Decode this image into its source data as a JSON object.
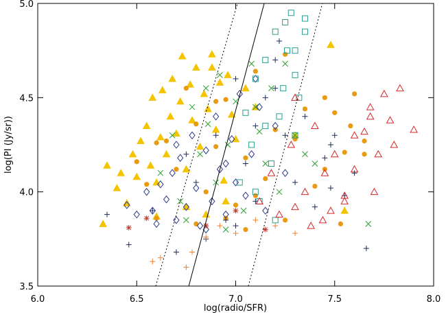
{
  "chart_data": {
    "type": "scatter",
    "xlabel": "log(radio/SFR)",
    "ylabel": "log(PI  (Jy/sr))",
    "xlim": [
      6.0,
      8.0
    ],
    "ylim": [
      3.5,
      5.0
    ],
    "xticks": [
      {
        "value": 6,
        "label": "6.0"
      },
      {
        "value": 6.5,
        "label": "6.5"
      },
      {
        "value": 7,
        "label": "7.0"
      },
      {
        "value": 7.5,
        "label": "7.5"
      },
      {
        "value": 8,
        "label": "8.0"
      }
    ],
    "yticks": [
      {
        "value": 3.5,
        "label": "3.5"
      },
      {
        "value": 4,
        "label": "4.0"
      },
      {
        "value": 4.5,
        "label": "4.5"
      },
      {
        "value": 5,
        "label": "5.0"
      }
    ],
    "lines": [
      {
        "style": "solid",
        "x": [
          6.763,
          7.144
        ],
        "y": [
          3.5,
          5.0
        ]
      },
      {
        "style": "dotted",
        "x": [
          6.596,
          7.009
        ],
        "y": [
          3.5,
          5.0
        ]
      },
      {
        "style": "dotted",
        "x": [
          7.064,
          7.438
        ],
        "y": [
          3.5,
          5.0
        ]
      }
    ],
    "series": [
      {
        "marker": "triangle-filled",
        "color": "#f5c400",
        "x": [
          6.33,
          6.35,
          6.4,
          6.42,
          6.45,
          6.48,
          6.5,
          6.52,
          6.55,
          6.57,
          6.58,
          6.6,
          6.62,
          6.63,
          6.65,
          6.67,
          6.68,
          6.7,
          6.72,
          6.73,
          6.75,
          6.77,
          6.78,
          6.8,
          6.82,
          6.84,
          6.86,
          6.88,
          6.9,
          6.92,
          6.94,
          6.96,
          6.98,
          7.0,
          7.05,
          6.75,
          6.85,
          6.95,
          7.1,
          7.3,
          7.48,
          7.55,
          6.88,
          6.6
        ],
        "y": [
          3.83,
          4.14,
          4.02,
          4.1,
          3.94,
          4.2,
          4.08,
          4.27,
          4.35,
          4.14,
          4.5,
          4.05,
          4.29,
          4.54,
          4.2,
          4.4,
          4.6,
          4.31,
          4.48,
          4.72,
          4.12,
          4.57,
          4.38,
          4.66,
          4.24,
          4.52,
          4.44,
          4.73,
          4.33,
          4.58,
          4.06,
          4.62,
          4.41,
          4.28,
          4.55,
          3.92,
          3.88,
          3.95,
          4.45,
          4.3,
          4.78,
          3.9,
          4.66,
          3.87
        ]
      },
      {
        "marker": "circle-filled",
        "color": "#e89a10",
        "x": [
          6.5,
          6.55,
          6.6,
          6.65,
          6.7,
          6.75,
          6.8,
          6.85,
          6.9,
          6.95,
          7.0,
          7.05,
          7.1,
          7.15,
          7.2,
          7.25,
          7.3,
          7.35,
          7.4,
          7.45,
          7.5,
          7.55,
          7.6,
          7.58,
          7.65,
          7.25,
          7.05,
          6.95,
          6.8,
          7.45,
          7.1,
          6.9,
          6.6,
          7.65,
          7.53
        ],
        "y": [
          4.16,
          4.04,
          3.86,
          4.27,
          4.12,
          4.55,
          4.36,
          4.0,
          4.24,
          4.49,
          3.93,
          4.18,
          4.64,
          4.07,
          4.33,
          3.85,
          4.28,
          4.44,
          4.03,
          4.5,
          4.42,
          4.21,
          4.52,
          4.35,
          4.2,
          4.73,
          3.8,
          3.86,
          3.83,
          4.12,
          3.98,
          4.48,
          4.26,
          4.27,
          3.83
        ]
      },
      {
        "marker": "diamond",
        "color": "#2b3a8c",
        "x": [
          6.45,
          6.5,
          6.55,
          6.6,
          6.62,
          6.65,
          6.68,
          6.7,
          6.72,
          6.75,
          6.78,
          6.8,
          6.82,
          6.85,
          6.88,
          6.9,
          6.92,
          6.95,
          6.98,
          7.0,
          7.02,
          7.05,
          7.08,
          7.1,
          7.15,
          7.2,
          7.25,
          6.7,
          6.85,
          7.12,
          6.58,
          6.95
        ],
        "y": [
          3.93,
          3.88,
          4.0,
          3.83,
          4.04,
          3.96,
          4.1,
          3.85,
          4.18,
          3.92,
          4.3,
          4.02,
          3.82,
          4.22,
          3.95,
          4.4,
          4.12,
          3.88,
          4.28,
          4.05,
          4.52,
          3.98,
          4.2,
          4.6,
          3.9,
          4.35,
          4.1,
          4.25,
          3.8,
          4.45,
          3.9,
          4.15
        ]
      },
      {
        "marker": "plus",
        "color": "#1c2a5a",
        "x": [
          6.35,
          6.46,
          6.58,
          6.7,
          6.8,
          6.9,
          6.95,
          7.0,
          7.05,
          7.1,
          7.15,
          7.2,
          7.22,
          7.25,
          7.3,
          7.35,
          7.4,
          7.45,
          7.48,
          7.5,
          7.55,
          7.6,
          7.66,
          7.2,
          7.1,
          6.85,
          7.0,
          7.48,
          6.75
        ],
        "y": [
          3.88,
          3.72,
          3.9,
          3.68,
          4.05,
          4.3,
          3.85,
          4.6,
          4.15,
          3.95,
          4.5,
          4.7,
          4.8,
          4.3,
          4.05,
          4.4,
          3.92,
          4.18,
          4.25,
          4.3,
          3.98,
          4.1,
          3.7,
          4.55,
          4.35,
          3.75,
          3.82,
          4.02,
          4.2
        ]
      },
      {
        "marker": "cross",
        "color": "#2ca02c",
        "x": [
          6.62,
          6.68,
          6.72,
          6.78,
          6.82,
          6.86,
          6.9,
          6.92,
          6.96,
          7.0,
          7.04,
          7.08,
          7.12,
          7.15,
          7.18,
          7.22,
          7.25,
          7.3,
          7.35,
          7.4,
          7.67,
          6.75,
          6.95,
          7.1,
          6.85
        ],
        "y": [
          4.1,
          4.3,
          3.95,
          4.45,
          4.2,
          4.36,
          4.05,
          4.62,
          4.25,
          4.48,
          3.9,
          4.68,
          4.32,
          4.15,
          4.55,
          4.0,
          4.68,
          4.3,
          4.2,
          4.15,
          3.83,
          3.85,
          3.8,
          4.45,
          4.55
        ]
      },
      {
        "marker": "square",
        "color": "#2a9d8f",
        "x": [
          7.02,
          7.05,
          7.08,
          7.1,
          7.12,
          7.15,
          7.18,
          7.2,
          7.22,
          7.24,
          7.26,
          7.28,
          7.3,
          7.32,
          7.35,
          7.35,
          7.25,
          7.3,
          7.15,
          7.1,
          7.2,
          7.3
        ],
        "y": [
          4.05,
          4.42,
          4.25,
          4.6,
          3.95,
          4.7,
          4.15,
          4.85,
          4.4,
          4.55,
          4.75,
          4.95,
          4.62,
          4.5,
          4.92,
          4.85,
          4.9,
          4.3,
          4.35,
          4.0,
          3.85,
          4.75
        ]
      },
      {
        "marker": "triangle",
        "color": "#d62728",
        "x": [
          7.12,
          7.18,
          7.22,
          7.28,
          7.3,
          7.35,
          7.38,
          7.4,
          7.45,
          7.48,
          7.5,
          7.55,
          7.6,
          7.65,
          7.68,
          7.7,
          7.72,
          7.75,
          7.78,
          7.8,
          7.83,
          7.9,
          7.68,
          7.55,
          7.6,
          7.44,
          7.3
        ],
        "y": [
          3.95,
          4.1,
          3.88,
          4.25,
          4.5,
          4.0,
          3.82,
          4.35,
          4.1,
          3.9,
          4.2,
          3.95,
          4.12,
          4.32,
          4.45,
          4.0,
          4.2,
          4.52,
          4.38,
          4.25,
          4.55,
          4.33,
          4.4,
          3.98,
          4.3,
          3.85,
          3.92
        ]
      },
      {
        "marker": "plus",
        "color": "#f08030",
        "x": [
          6.58,
          6.62,
          6.75,
          6.78,
          6.85,
          6.92,
          7.0,
          7.1,
          7.2,
          7.3
        ],
        "y": [
          3.63,
          3.65,
          3.6,
          3.68,
          3.76,
          3.82,
          3.78,
          3.85,
          3.82,
          3.78
        ]
      },
      {
        "marker": "asterisk",
        "color": "#c0392b",
        "x": [
          6.46,
          6.55,
          6.85,
          7.0,
          7.15
        ],
        "y": [
          3.81,
          3.86,
          3.82,
          3.9,
          3.8
        ]
      }
    ]
  }
}
